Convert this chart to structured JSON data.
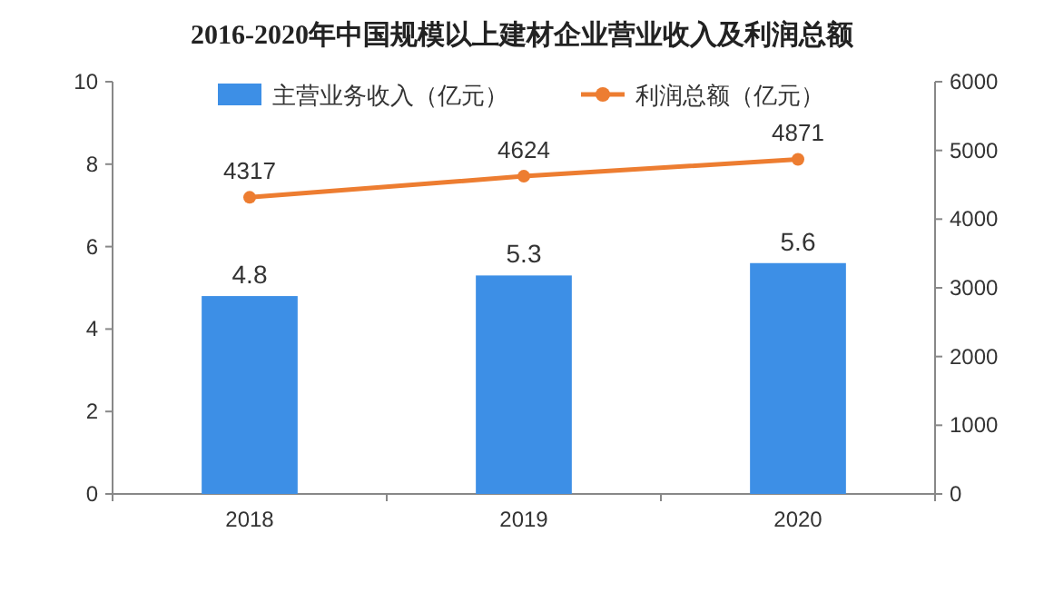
{
  "chart_data": {
    "type": "bar",
    "title": "2016-2020年中国规模以上建材企业营业收入及利润总额",
    "categories": [
      "2018",
      "2019",
      "2020"
    ],
    "series": [
      {
        "name": "主营业务收入（亿元）",
        "color": "#3d8fe6",
        "values": [
          4.8,
          5.3,
          5.6
        ]
      },
      {
        "name": "利润总额（亿元）",
        "type": "line",
        "axis": "y2",
        "color": "#ed7d31",
        "marker": "circle",
        "values": [
          4317,
          4624,
          4871
        ]
      }
    ],
    "ylim": [
      0,
      10
    ],
    "yticks": [
      0,
      2,
      4,
      6,
      8,
      10
    ],
    "y2lim": [
      0,
      6000
    ],
    "y2ticks": [
      0,
      1000,
      2000,
      3000,
      4000,
      5000,
      6000
    ],
    "data_labels": true,
    "legend": "top"
  }
}
